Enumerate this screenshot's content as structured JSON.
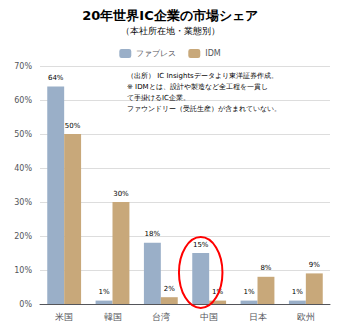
{
  "chart_data": {
    "type": "bar",
    "title": "20年世界IC企業の市場シェア",
    "subtitle": "（本社所在地・業態別）",
    "categories": [
      "米国",
      "韓国",
      "台湾",
      "中国",
      "日本",
      "欧州"
    ],
    "series": [
      {
        "name": "ファブレス",
        "color": "#9aafc8",
        "values": [
          64,
          1,
          18,
          15,
          1,
          1
        ],
        "value_labels": [
          "64%",
          "1%",
          "18%",
          "15%",
          "1%",
          "1%"
        ]
      },
      {
        "name": "IDM",
        "color": "#c8a87a",
        "values": [
          50,
          30,
          2,
          1,
          8,
          9
        ],
        "value_labels": [
          "50%",
          "30%",
          "2%",
          "1%",
          "8%",
          "9%"
        ]
      }
    ],
    "ylim": [
      0,
      70
    ],
    "yticks": [
      {
        "value": 0,
        "label": "0%"
      },
      {
        "value": 10,
        "label": "10%"
      },
      {
        "value": 20,
        "label": "20%"
      },
      {
        "value": 30,
        "label": "30%"
      },
      {
        "value": 40,
        "label": "40%"
      },
      {
        "value": 50,
        "label": "50%"
      },
      {
        "value": 60,
        "label": "60%"
      },
      {
        "value": 70,
        "label": "70%"
      }
    ],
    "grid": true,
    "legend": "top",
    "data_labels": true,
    "annotations": [
      "（出所） IC Insightsデータより東洋証券作成。",
      "※ IDMとは、設計や製造など全工程を一貫し",
      "て手掛けるIC企業。",
      "ファウンドリー（受託生産）が含まれていない。"
    ],
    "highlight": {
      "series": "ファブレス",
      "category": "中国",
      "color": "red"
    }
  }
}
